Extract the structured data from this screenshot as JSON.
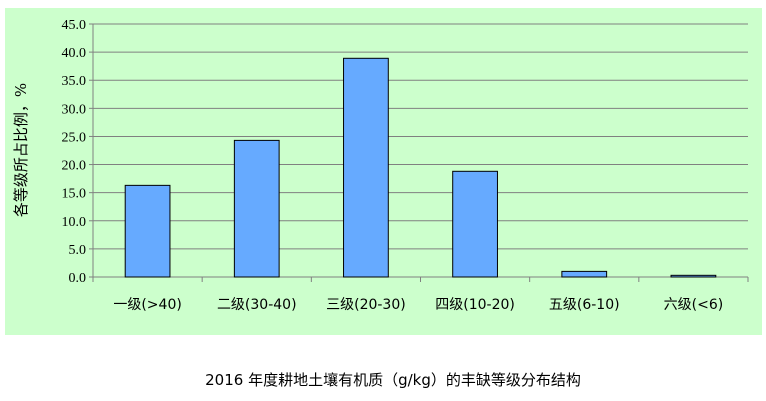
{
  "chart_data": {
    "type": "bar",
    "title": "2016 年度耕地土壤有机质（g/kg）的丰缺等级分布结构",
    "xlabel": "",
    "ylabel": "各等级所占比例，%",
    "categories": [
      "一级(>40)",
      "二级(30-40)",
      "三级(20-30)",
      "四级(10-20)",
      "五级(6-10)",
      "六级(<6)"
    ],
    "values": [
      16.3,
      24.3,
      38.9,
      18.8,
      1.0,
      0.3
    ],
    "ylim": [
      0,
      45
    ],
    "yticks": [
      "0.0",
      "5.0",
      "10.0",
      "15.0",
      "20.0",
      "25.0",
      "30.0",
      "35.0",
      "40.0",
      "45.0"
    ],
    "grid": true,
    "colors": {
      "bar": "#66aaff",
      "background": "#ccffcc",
      "grid": "#808080"
    }
  }
}
